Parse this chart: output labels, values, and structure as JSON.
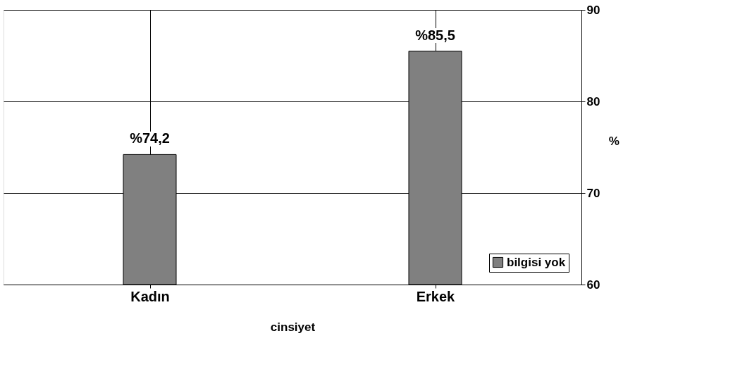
{
  "chart_data": {
    "type": "bar",
    "xlabel": "cinsiyet",
    "ylabel": "%",
    "categories": [
      "Kadın",
      "Erkek"
    ],
    "series": [
      {
        "name": "bilgisi yok",
        "color": "#808080",
        "values": [
          74.2,
          85.5
        ],
        "value_labels": [
          "%74,2",
          "%85,5"
        ]
      }
    ],
    "ylim": [
      60,
      90
    ],
    "yticks": [
      60,
      70,
      80,
      90
    ],
    "grid": true,
    "legend": "bottom right"
  }
}
